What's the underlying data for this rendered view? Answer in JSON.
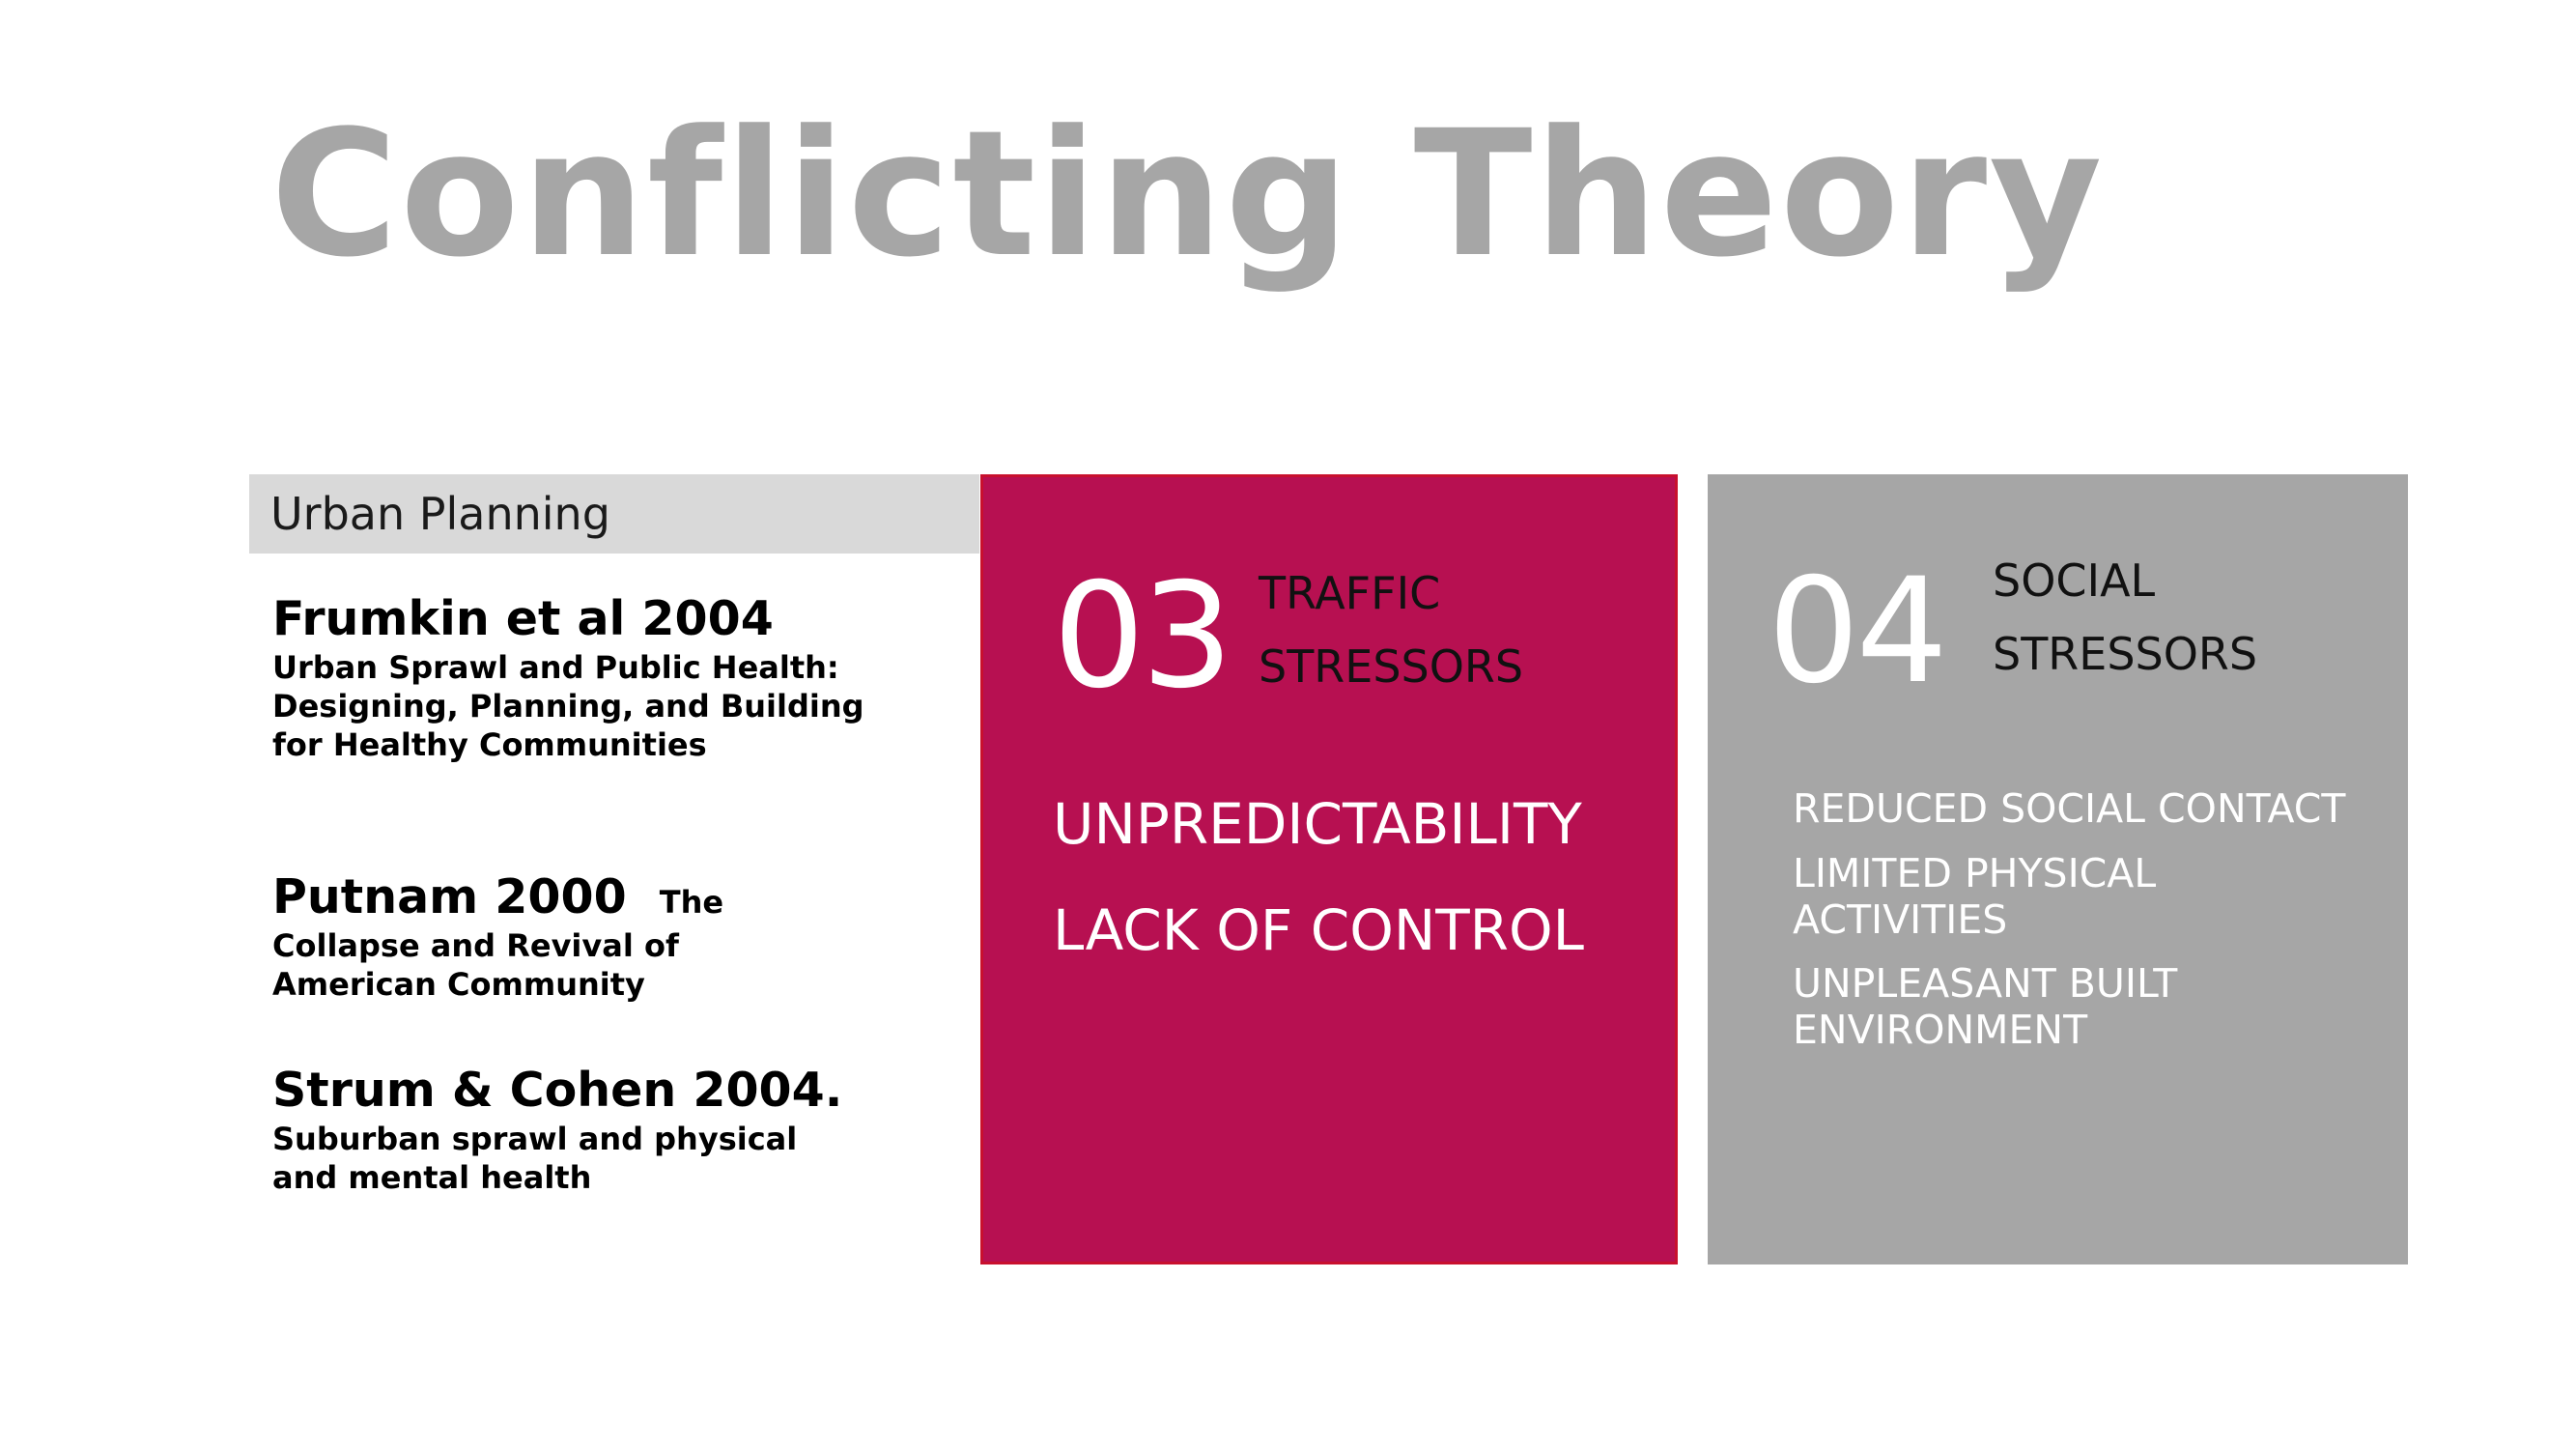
{
  "title": "Conflicting Theory",
  "section": {
    "label": "Urban Planning"
  },
  "references": [
    {
      "head": "Frumkin et al 2004",
      "sub": "Urban Sprawl and Public Health: Designing, Planning, and Building for Healthy Communities"
    },
    {
      "head": "Putnam 2000",
      "inline_sub": "The",
      "sub": "Collapse and Revival of American Community"
    },
    {
      "head": "Strum & Cohen 2004.",
      "sub": "Suburban sprawl and physical and mental health"
    }
  ],
  "box_traffic": {
    "number": "03",
    "title": "TRAFFIC\nSTRESSORS",
    "items": [
      "UNPREDICTABILITY",
      "LACK OF CONTROL"
    ],
    "background": "#b71051"
  },
  "box_social": {
    "number": "04",
    "title": "SOCIAL\nSTRESSORS",
    "items": [
      "REDUCED SOCIAL CONTACT",
      "LIMITED PHYSICAL\nACTIVITIES",
      "UNPLEASANT BUILT\nENVIRONMENT"
    ],
    "background": "#a6a6a6"
  },
  "colors": {
    "title_grey": "#a6a6a6",
    "section_bar": "#d9d9d9"
  }
}
